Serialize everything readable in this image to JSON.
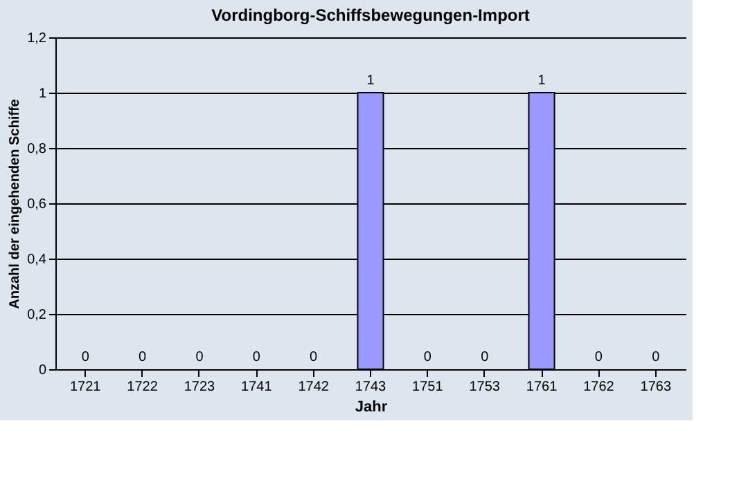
{
  "chart_data": {
    "type": "bar",
    "title": "Vordingborg-Schiffsbewegungen-Import",
    "xlabel": "Jahr",
    "ylabel": "Anzahl der eingehenden Schiffe",
    "categories": [
      "1721",
      "1722",
      "1723",
      "1741",
      "1742",
      "1743",
      "1751",
      "1753",
      "1761",
      "1762",
      "1763"
    ],
    "values": [
      0,
      0,
      0,
      0,
      0,
      1,
      0,
      0,
      1,
      0,
      0
    ],
    "color": "#9999ff",
    "ylim": [
      0,
      1.2
    ],
    "yticks": [
      0,
      {
        "value": 0.2,
        "label": "0,2"
      },
      {
        "value": 0.4,
        "label": "0,4"
      },
      {
        "value": 0.6,
        "label": "0,6"
      },
      {
        "value": 0.8,
        "label": "0,8"
      },
      1,
      {
        "value": 1.2,
        "label": "1,2"
      }
    ],
    "grid": "y",
    "data_labels": true
  }
}
